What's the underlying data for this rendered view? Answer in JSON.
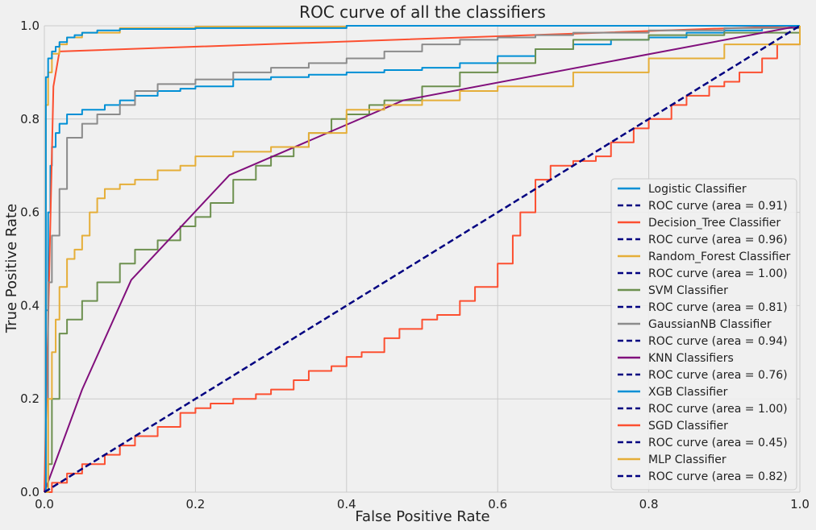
{
  "chart_data": {
    "type": "line",
    "title": "ROC curve of all the classifiers",
    "xlabel": "False Positive Rate",
    "ylabel": "True Positive Rate",
    "xlim": [
      0.0,
      1.0
    ],
    "ylim": [
      0.0,
      1.0
    ],
    "xticks": [
      "0.0",
      "0.2",
      "0.4",
      "0.6",
      "0.8",
      "1.0"
    ],
    "yticks": [
      "0.0",
      "0.2",
      "0.4",
      "0.6",
      "0.8",
      "1.0"
    ],
    "grid": true,
    "legend_placement": "lower-right",
    "diagonal_color": "#000080",
    "legend": [
      {
        "label": "Logistic Classifier",
        "style": "solid",
        "color": "#008fd5"
      },
      {
        "label": "ROC curve (area = 0.91)",
        "style": "dashed",
        "color": "#000080"
      },
      {
        "label": "Decision_Tree Classifier",
        "style": "solid",
        "color": "#fc4f30"
      },
      {
        "label": "ROC curve (area = 0.96)",
        "style": "dashed",
        "color": "#000080"
      },
      {
        "label": "Random_Forest Classifier",
        "style": "solid",
        "color": "#e5ae38"
      },
      {
        "label": "ROC curve (area = 1.00)",
        "style": "dashed",
        "color": "#000080"
      },
      {
        "label": "SVM Classifier",
        "style": "solid",
        "color": "#6d904f"
      },
      {
        "label": "ROC curve (area = 0.81)",
        "style": "dashed",
        "color": "#000080"
      },
      {
        "label": "GaussianNB Classifier",
        "style": "solid",
        "color": "#8b8b8b"
      },
      {
        "label": "ROC curve (area = 0.94)",
        "style": "dashed",
        "color": "#000080"
      },
      {
        "label": "KNN Classifiers",
        "style": "solid",
        "color": "#810f7c"
      },
      {
        "label": "ROC curve (area = 0.76)",
        "style": "dashed",
        "color": "#000080"
      },
      {
        "label": "XGB Classifier",
        "style": "solid",
        "color": "#008fd5"
      },
      {
        "label": "ROC curve (area = 1.00)",
        "style": "dashed",
        "color": "#000080"
      },
      {
        "label": "SGD Classifier",
        "style": "solid",
        "color": "#fc4f30"
      },
      {
        "label": "ROC curve (area = 0.45)",
        "style": "dashed",
        "color": "#000080"
      },
      {
        "label": "MLP Classifier",
        "style": "solid",
        "color": "#e5ae38"
      },
      {
        "label": "ROC curve (area = 0.82)",
        "style": "dashed",
        "color": "#000080"
      }
    ],
    "series": [
      {
        "name": "Logistic Classifier",
        "color": "#008fd5",
        "step": true,
        "x": [
          0,
          0.002,
          0.005,
          0.008,
          0.01,
          0.015,
          0.02,
          0.03,
          0.05,
          0.08,
          0.1,
          0.12,
          0.15,
          0.18,
          0.2,
          0.25,
          0.3,
          0.35,
          0.4,
          0.45,
          0.5,
          0.55,
          0.6,
          0.65,
          0.7,
          0.75,
          0.8,
          0.85,
          0.9,
          0.95,
          1.0
        ],
        "y": [
          0,
          0.39,
          0.6,
          0.7,
          0.74,
          0.77,
          0.79,
          0.81,
          0.82,
          0.83,
          0.84,
          0.85,
          0.86,
          0.865,
          0.87,
          0.885,
          0.89,
          0.895,
          0.9,
          0.905,
          0.91,
          0.92,
          0.935,
          0.95,
          0.96,
          0.97,
          0.975,
          0.985,
          0.99,
          0.995,
          1.0
        ]
      },
      {
        "name": "Decision_Tree Classifier",
        "color": "#fc4f30",
        "step": false,
        "x": [
          0,
          0.012,
          0.02,
          1.0
        ],
        "y": [
          0,
          0.87,
          0.945,
          1.0
        ]
      },
      {
        "name": "Random_Forest Classifier",
        "color": "#e5ae38",
        "step": true,
        "x": [
          0,
          0.002,
          0.005,
          0.01,
          0.02,
          0.03,
          0.05,
          0.1,
          0.2,
          0.4,
          0.6,
          1.0
        ],
        "y": [
          0,
          0.83,
          0.9,
          0.94,
          0.96,
          0.975,
          0.985,
          0.995,
          0.998,
          1.0,
          1.0,
          1.0
        ]
      },
      {
        "name": "SVM Classifier",
        "color": "#6d904f",
        "step": true,
        "x": [
          0,
          0.005,
          0.01,
          0.02,
          0.03,
          0.05,
          0.07,
          0.1,
          0.12,
          0.15,
          0.18,
          0.2,
          0.22,
          0.25,
          0.28,
          0.3,
          0.33,
          0.35,
          0.38,
          0.4,
          0.43,
          0.45,
          0.5,
          0.55,
          0.6,
          0.65,
          0.7,
          0.8,
          0.9,
          1.0
        ],
        "y": [
          0,
          0.06,
          0.2,
          0.34,
          0.37,
          0.41,
          0.45,
          0.49,
          0.52,
          0.54,
          0.57,
          0.59,
          0.62,
          0.67,
          0.7,
          0.72,
          0.74,
          0.77,
          0.8,
          0.81,
          0.83,
          0.84,
          0.87,
          0.9,
          0.92,
          0.95,
          0.97,
          0.98,
          0.985,
          1.0
        ]
      },
      {
        "name": "GaussianNB Classifier",
        "color": "#8b8b8b",
        "step": true,
        "x": [
          0,
          0.005,
          0.01,
          0.02,
          0.03,
          0.05,
          0.07,
          0.1,
          0.12,
          0.15,
          0.2,
          0.25,
          0.3,
          0.35,
          0.4,
          0.45,
          0.5,
          0.55,
          0.6,
          0.65,
          0.7,
          0.8,
          0.9,
          1.0
        ],
        "y": [
          0,
          0.45,
          0.55,
          0.65,
          0.76,
          0.79,
          0.81,
          0.83,
          0.86,
          0.875,
          0.885,
          0.9,
          0.91,
          0.92,
          0.93,
          0.945,
          0.96,
          0.97,
          0.975,
          0.98,
          0.985,
          0.99,
          0.995,
          1.0
        ]
      },
      {
        "name": "KNN Classifiers",
        "color": "#810f7c",
        "step": false,
        "x": [
          0,
          0.05,
          0.115,
          0.245,
          0.475,
          1.0
        ],
        "y": [
          0,
          0.22,
          0.455,
          0.68,
          0.84,
          1.0
        ]
      },
      {
        "name": "XGB Classifier",
        "color": "#008fd5",
        "step": true,
        "x": [
          0,
          0.002,
          0.005,
          0.01,
          0.015,
          0.02,
          0.03,
          0.04,
          0.05,
          0.07,
          0.1,
          0.2,
          0.4,
          0.6,
          1.0
        ],
        "y": [
          0,
          0.89,
          0.93,
          0.945,
          0.955,
          0.965,
          0.975,
          0.98,
          0.985,
          0.99,
          0.993,
          0.995,
          1.0,
          1.0,
          1.0
        ]
      },
      {
        "name": "SGD Classifier",
        "color": "#fc4f30",
        "step": true,
        "x": [
          0,
          0.01,
          0.03,
          0.05,
          0.08,
          0.1,
          0.12,
          0.15,
          0.18,
          0.2,
          0.22,
          0.25,
          0.28,
          0.3,
          0.33,
          0.35,
          0.38,
          0.4,
          0.42,
          0.45,
          0.47,
          0.5,
          0.52,
          0.55,
          0.57,
          0.6,
          0.62,
          0.63,
          0.65,
          0.67,
          0.7,
          0.73,
          0.75,
          0.78,
          0.8,
          0.83,
          0.85,
          0.88,
          0.9,
          0.92,
          0.95,
          0.97,
          1.0
        ],
        "y": [
          0,
          0.02,
          0.04,
          0.06,
          0.08,
          0.1,
          0.12,
          0.14,
          0.17,
          0.18,
          0.19,
          0.2,
          0.21,
          0.22,
          0.24,
          0.26,
          0.27,
          0.29,
          0.3,
          0.33,
          0.35,
          0.37,
          0.38,
          0.41,
          0.44,
          0.49,
          0.55,
          0.6,
          0.67,
          0.7,
          0.71,
          0.72,
          0.75,
          0.78,
          0.8,
          0.83,
          0.85,
          0.87,
          0.88,
          0.9,
          0.93,
          0.96,
          1.0
        ]
      },
      {
        "name": "MLP Classifier",
        "color": "#e5ae38",
        "step": true,
        "x": [
          0,
          0.005,
          0.01,
          0.015,
          0.02,
          0.03,
          0.04,
          0.05,
          0.06,
          0.07,
          0.08,
          0.1,
          0.12,
          0.15,
          0.18,
          0.2,
          0.25,
          0.3,
          0.35,
          0.4,
          0.45,
          0.5,
          0.55,
          0.6,
          0.7,
          0.8,
          0.9,
          1.0
        ],
        "y": [
          0,
          0.2,
          0.3,
          0.37,
          0.44,
          0.5,
          0.52,
          0.55,
          0.6,
          0.63,
          0.65,
          0.66,
          0.67,
          0.69,
          0.7,
          0.72,
          0.73,
          0.74,
          0.77,
          0.82,
          0.83,
          0.84,
          0.86,
          0.87,
          0.9,
          0.93,
          0.96,
          1.0
        ]
      }
    ],
    "diagonal": {
      "x": [
        0,
        1
      ],
      "y": [
        0,
        1
      ]
    }
  }
}
